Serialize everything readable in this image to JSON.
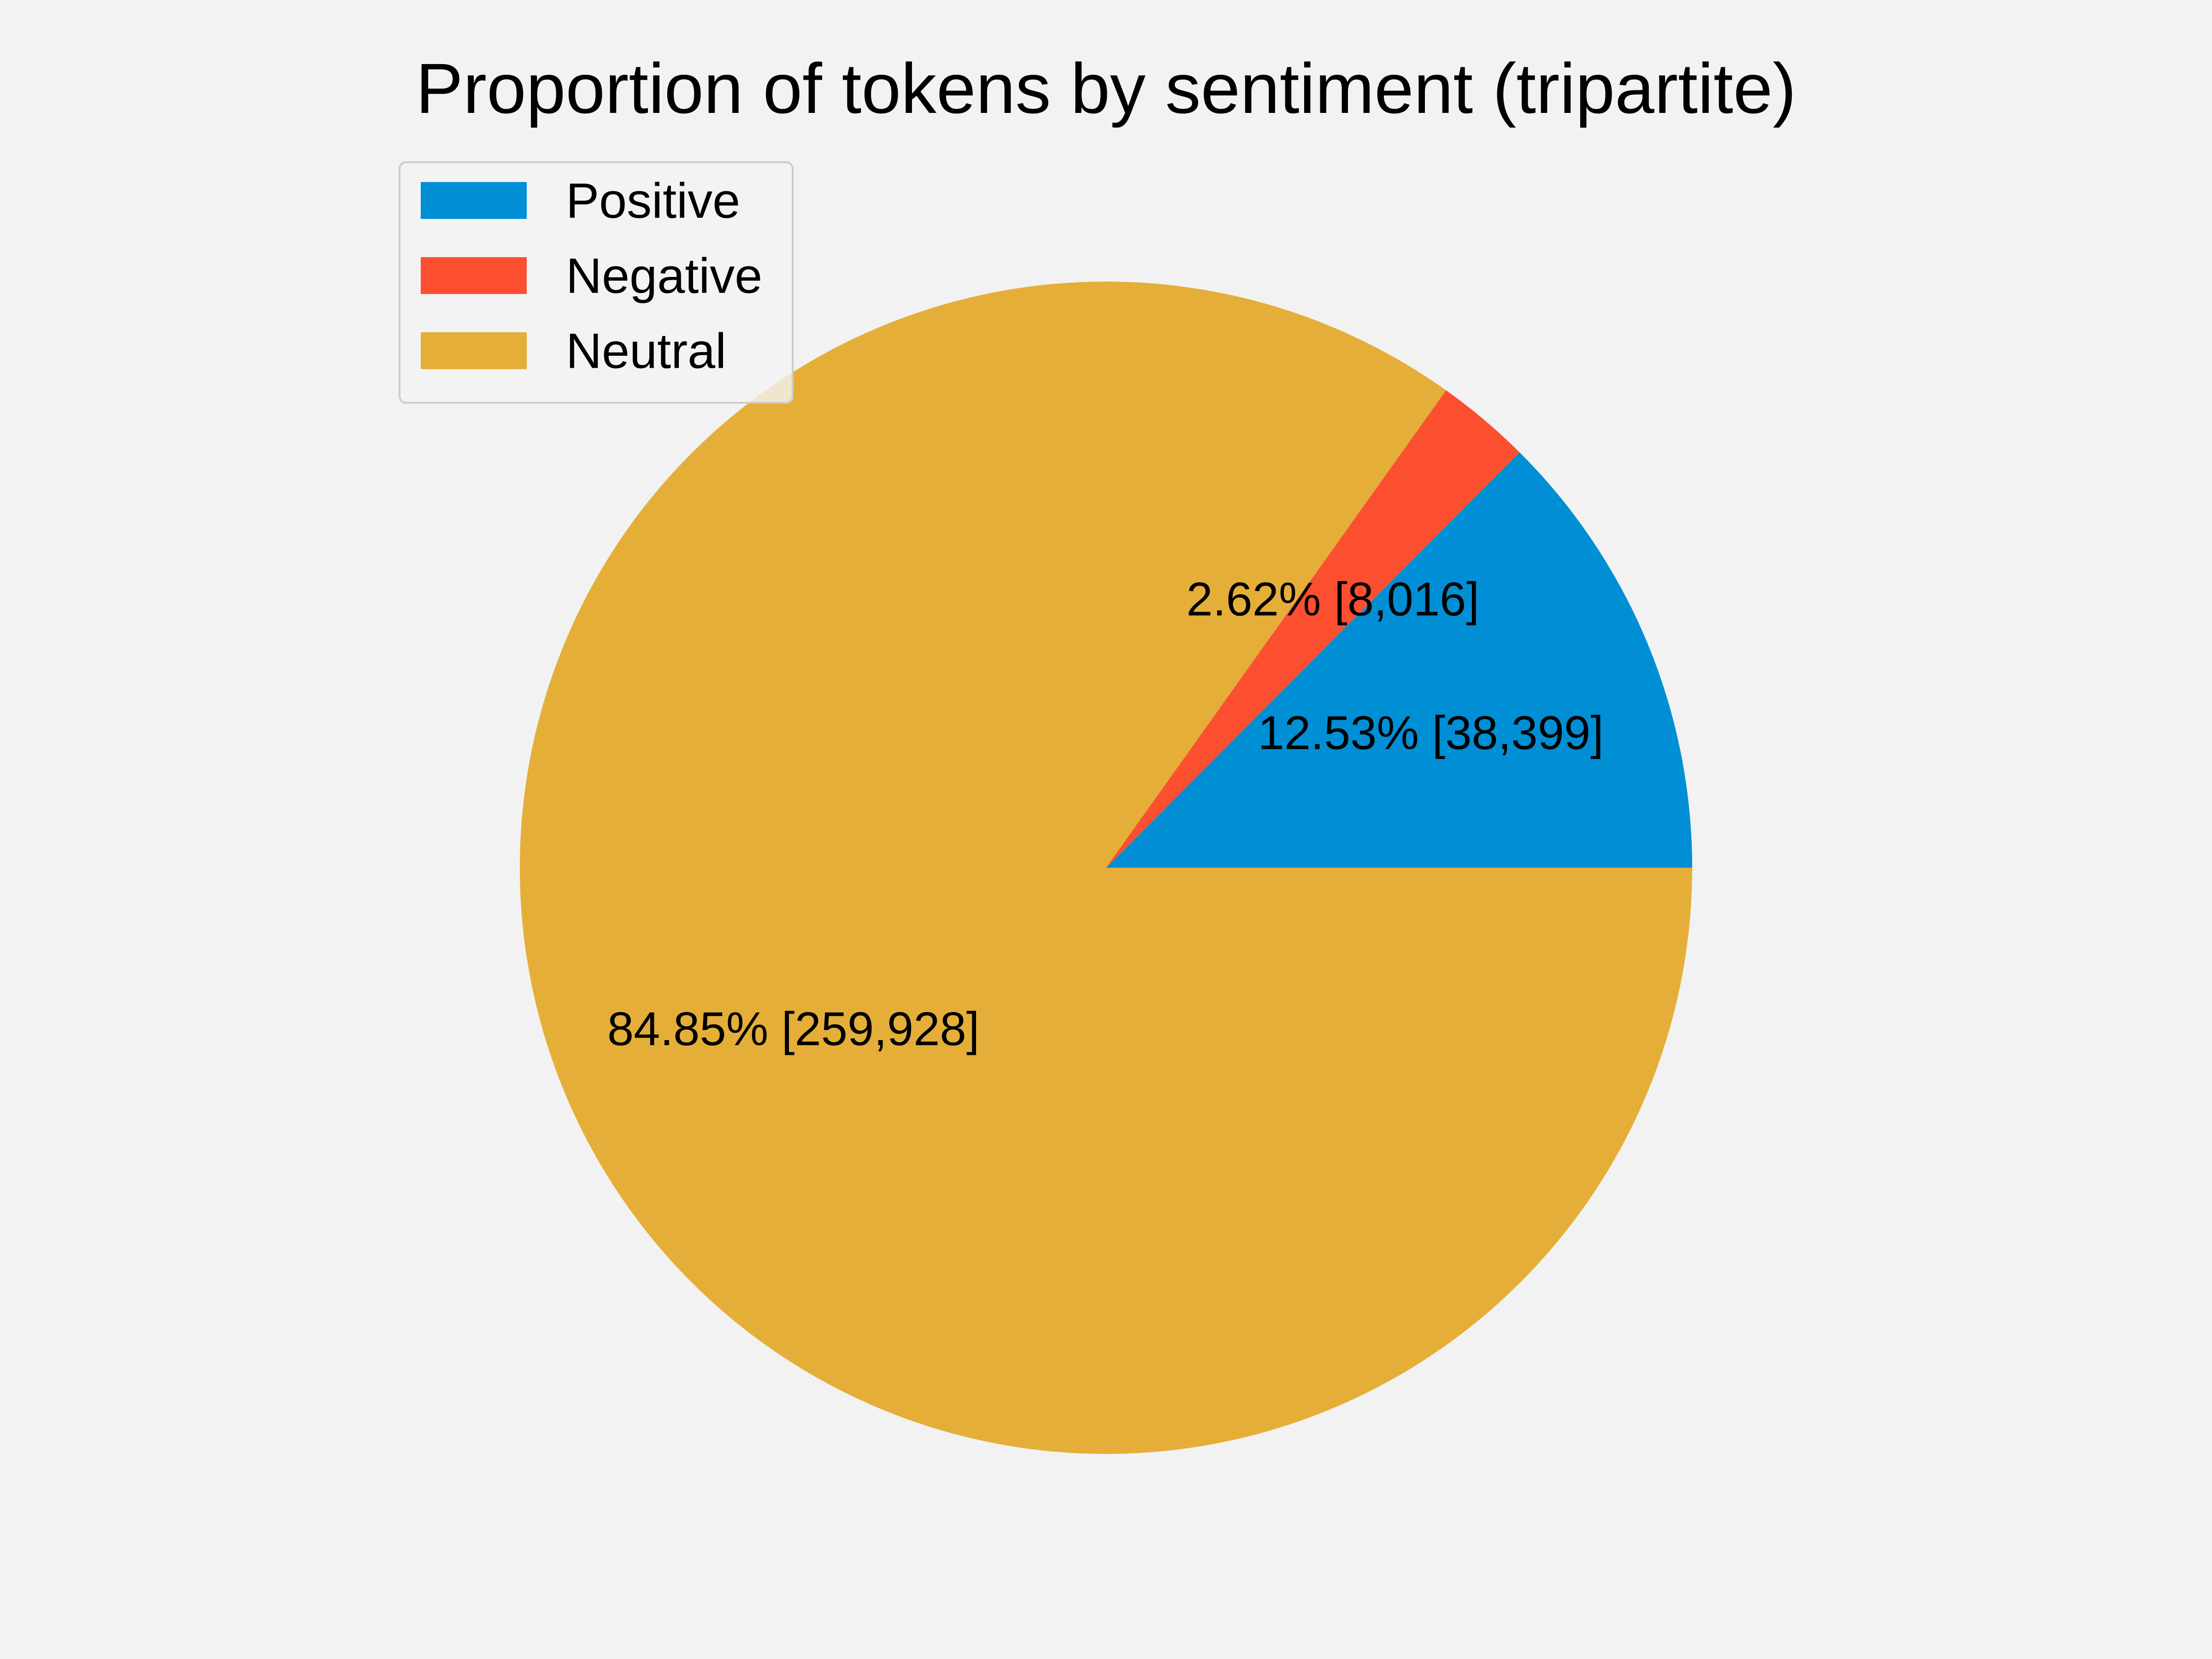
{
  "chart_data": {
    "type": "pie",
    "title": "Proportion of tokens by sentiment (tripartite)",
    "start_angle_deg": 0,
    "direction": "counterclockwise",
    "legend_position": "upper-left",
    "slices": [
      {
        "name": "Positive",
        "count": 38399,
        "percent": 12.53,
        "label": "12.53% [38,399]",
        "color": "#008fd5"
      },
      {
        "name": "Negative",
        "count": 8016,
        "percent": 2.62,
        "label": "2.62% [8,016]",
        "color": "#fc4f30"
      },
      {
        "name": "Neutral",
        "count": 259928,
        "percent": 84.85,
        "label": "84.85% [259,928]",
        "color": "#e5ae38"
      }
    ]
  },
  "colors": {
    "background": "#f2f2f2",
    "legend_background": "#f2f2f2",
    "legend_border": "#cccccc"
  }
}
